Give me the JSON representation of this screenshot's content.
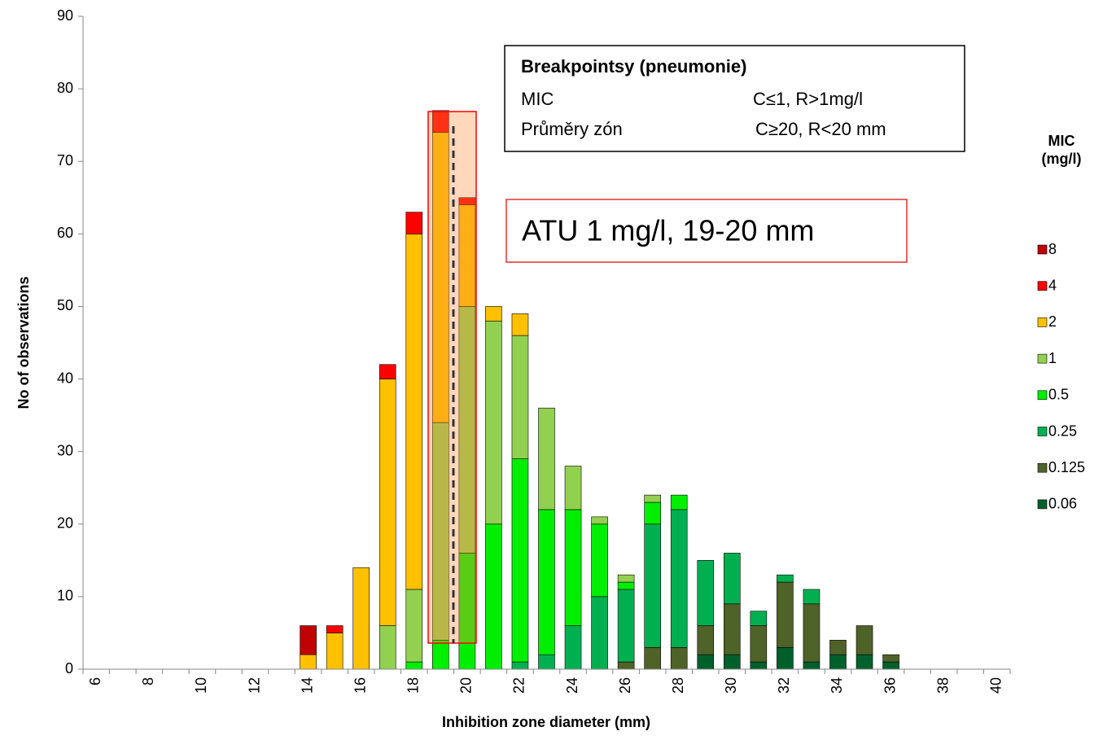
{
  "chart_data": {
    "type": "bar",
    "stacked": true,
    "y_label": "No of observations",
    "x_label": "Inhibition zone diameter (mm)",
    "legend_title": [
      "MIC",
      "(mg/l)"
    ],
    "categories": [
      "6",
      null,
      "8",
      null,
      "10",
      null,
      "12",
      null,
      "14",
      null,
      "16",
      null,
      "18",
      null,
      "20",
      null,
      "22",
      null,
      "24",
      null,
      "26",
      null,
      "28",
      null,
      "30",
      null,
      "32",
      null,
      "34",
      null,
      "36",
      null,
      "38",
      null,
      "40"
    ],
    "ylim": [
      0,
      90
    ],
    "yticks": [
      0,
      10,
      20,
      30,
      40,
      50,
      60,
      70,
      80,
      90
    ],
    "series": [
      {
        "name": "0.06",
        "color": "#00602b",
        "values": [
          0,
          0,
          0,
          0,
          0,
          0,
          0,
          0,
          0,
          0,
          0,
          0,
          0,
          0,
          0,
          0,
          0,
          0,
          0,
          0,
          0,
          0,
          0,
          2,
          2,
          1,
          3,
          1,
          2,
          2,
          1,
          0,
          0,
          0,
          0
        ]
      },
      {
        "name": "0.125",
        "color": "#4f6228",
        "values": [
          0,
          0,
          0,
          0,
          0,
          0,
          0,
          0,
          0,
          0,
          0,
          0,
          0,
          0,
          0,
          0,
          0,
          0,
          0,
          0,
          1,
          3,
          3,
          4,
          7,
          5,
          9,
          8,
          2,
          4,
          1,
          0,
          0,
          0,
          0
        ]
      },
      {
        "name": "0.25",
        "color": "#00b050",
        "values": [
          0,
          0,
          0,
          0,
          0,
          0,
          0,
          0,
          0,
          0,
          0,
          0,
          0,
          0,
          0,
          0,
          1,
          2,
          6,
          10,
          10,
          17,
          19,
          9,
          7,
          2,
          1,
          2,
          0,
          0,
          0,
          0,
          0,
          0,
          0
        ]
      },
      {
        "name": "0.5",
        "color": "#00ee00",
        "values": [
          0,
          0,
          0,
          0,
          0,
          0,
          0,
          0,
          0,
          0,
          0,
          0,
          1,
          4,
          16,
          20,
          28,
          20,
          16,
          10,
          1,
          3,
          2,
          0,
          0,
          0,
          0,
          0,
          0,
          0,
          0,
          0,
          0,
          0,
          0
        ]
      },
      {
        "name": "1",
        "color": "#92d050",
        "values": [
          0,
          0,
          0,
          0,
          0,
          0,
          0,
          0,
          0,
          0,
          0,
          6,
          10,
          30,
          34,
          28,
          17,
          14,
          6,
          1,
          1,
          1,
          0,
          0,
          0,
          0,
          0,
          0,
          0,
          0,
          0,
          0,
          0,
          0,
          0
        ]
      },
      {
        "name": "2",
        "color": "#ffc000",
        "values": [
          0,
          0,
          0,
          0,
          0,
          0,
          0,
          0,
          2,
          5,
          14,
          34,
          49,
          40,
          14,
          2,
          3,
          0,
          0,
          0,
          0,
          0,
          0,
          0,
          0,
          0,
          0,
          0,
          0,
          0,
          0,
          0,
          0,
          0,
          0
        ]
      },
      {
        "name": "4",
        "color": "#ff0000",
        "values": [
          0,
          0,
          0,
          0,
          0,
          0,
          0,
          0,
          0,
          1,
          0,
          2,
          3,
          3,
          1,
          0,
          0,
          0,
          0,
          0,
          0,
          0,
          0,
          0,
          0,
          0,
          0,
          0,
          0,
          0,
          0,
          0,
          0,
          0,
          0
        ]
      },
      {
        "name": "8",
        "color": "#c00000",
        "values": [
          0,
          0,
          0,
          0,
          0,
          0,
          0,
          0,
          4,
          0,
          0,
          0,
          0,
          0,
          0,
          0,
          0,
          0,
          0,
          0,
          0,
          0,
          0,
          0,
          0,
          0,
          0,
          0,
          0,
          0,
          0,
          0,
          0,
          0,
          0
        ]
      }
    ],
    "annotations": {
      "breakpoints_title": "Breakpointsy (pneumonie)",
      "mic_label": "MIC",
      "mic_value": "C≤1, R>1mg/l",
      "zone_label": "Průměry zón",
      "zone_value": "C≥20, R<20 mm",
      "atu": "ATU 1 mg/l, 19-20 mm"
    }
  }
}
